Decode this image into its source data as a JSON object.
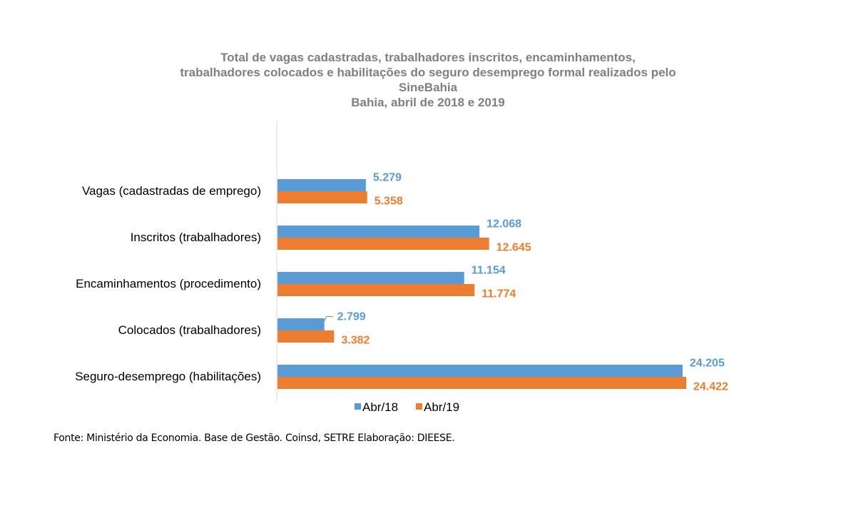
{
  "chart_data": {
    "type": "bar",
    "orientation": "horizontal",
    "title_lines": [
      "Total de vagas cadastradas, trabalhadores inscritos, encaminhamentos,",
      "trabalhadores colocados e habilitações do seguro desemprego formal realizados pelo",
      "SineBahia",
      "Bahia, abril de 2018 e 2019"
    ],
    "categories": [
      "Vagas (cadastradas de emprego)",
      "Inscritos (trabalhadores)",
      "Encaminhamentos (procedimento)",
      "Colocados (trabalhadores)",
      "Seguro-desemprego (habilitações)"
    ],
    "series": [
      {
        "name": "Abr/18",
        "color": "#5b9bd5",
        "values": [
          5279,
          12068,
          11154,
          2799,
          24205
        ],
        "labels": [
          "5.279",
          "12.068",
          "11.154",
          "2.799",
          "24.205"
        ]
      },
      {
        "name": "Abr/19",
        "color": "#ed7d31",
        "values": [
          5358,
          12645,
          11774,
          3382,
          24422
        ],
        "labels": [
          "5.358",
          "12.645",
          "11.774",
          "3.382",
          "24.422"
        ]
      }
    ],
    "xlim": [
      0,
      24422
    ],
    "grid": false,
    "legend_position": "bottom"
  },
  "source_note": "Fonte: Ministério da Economia. Base de Gestão. Coinsd, SETRE Elaboração: DIEESE."
}
